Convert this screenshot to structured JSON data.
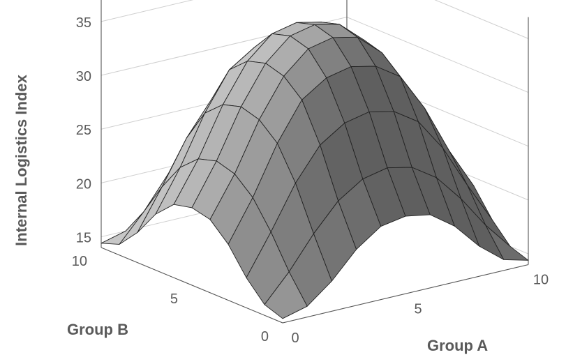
{
  "chart_data": {
    "type": "surface",
    "zlabel": "Internal Logistics Index",
    "xlabel": "Group A",
    "ylabel": "Group B",
    "x_ticks": [
      "0",
      "5",
      "10"
    ],
    "y_ticks": [
      "0",
      "5",
      "10"
    ],
    "z_ticks": [
      "15",
      "20",
      "25",
      "30",
      "35"
    ],
    "x": [
      0,
      1,
      2,
      3,
      4,
      5,
      6,
      7,
      8,
      9,
      10
    ],
    "y": [
      0,
      1,
      2,
      3,
      4,
      5,
      6,
      7,
      8,
      9,
      10
    ],
    "xlim": [
      0,
      10
    ],
    "ylim": [
      0,
      10
    ],
    "zlim": [
      14,
      37
    ],
    "grid": true,
    "z": [
      [
        14.4,
        15.0,
        16.8,
        19.2,
        20.8,
        21.2,
        20.8,
        19.2,
        16.8,
        15.0,
        14.4
      ],
      [
        15.0,
        17.5,
        20.5,
        23.0,
        24.5,
        25.0,
        24.5,
        23.0,
        20.5,
        17.5,
        15.0
      ],
      [
        16.8,
        20.5,
        24.5,
        27.5,
        29.0,
        29.5,
        29.0,
        27.5,
        24.5,
        20.5,
        16.8
      ],
      [
        19.2,
        23.0,
        27.5,
        31.0,
        32.5,
        33.0,
        32.5,
        31.0,
        27.5,
        23.0,
        19.2
      ],
      [
        20.8,
        24.5,
        29.0,
        32.5,
        34.5,
        35.0,
        34.5,
        32.5,
        29.0,
        24.5,
        20.8
      ],
      [
        21.2,
        25.0,
        29.5,
        33.0,
        35.0,
        35.5,
        35.0,
        33.0,
        29.5,
        25.0,
        21.2
      ],
      [
        20.8,
        24.5,
        29.0,
        32.5,
        34.5,
        35.0,
        34.5,
        32.5,
        29.0,
        24.5,
        20.8
      ],
      [
        19.2,
        23.0,
        27.5,
        31.0,
        32.5,
        33.0,
        32.5,
        31.0,
        27.5,
        23.0,
        19.2
      ],
      [
        16.8,
        20.5,
        24.5,
        27.5,
        29.0,
        29.5,
        29.0,
        27.5,
        24.5,
        20.5,
        16.8
      ],
      [
        15.0,
        17.5,
        20.5,
        23.0,
        24.5,
        25.0,
        24.5,
        23.0,
        20.5,
        17.5,
        15.0
      ],
      [
        14.4,
        15.0,
        16.8,
        19.2,
        20.8,
        21.2,
        20.8,
        19.2,
        16.8,
        15.0,
        14.4
      ]
    ],
    "colors": {
      "surface": "#8c8c8c",
      "edge": "#222222",
      "axis_text": "#5a5a5a",
      "grid": "#cfcfcf"
    }
  }
}
